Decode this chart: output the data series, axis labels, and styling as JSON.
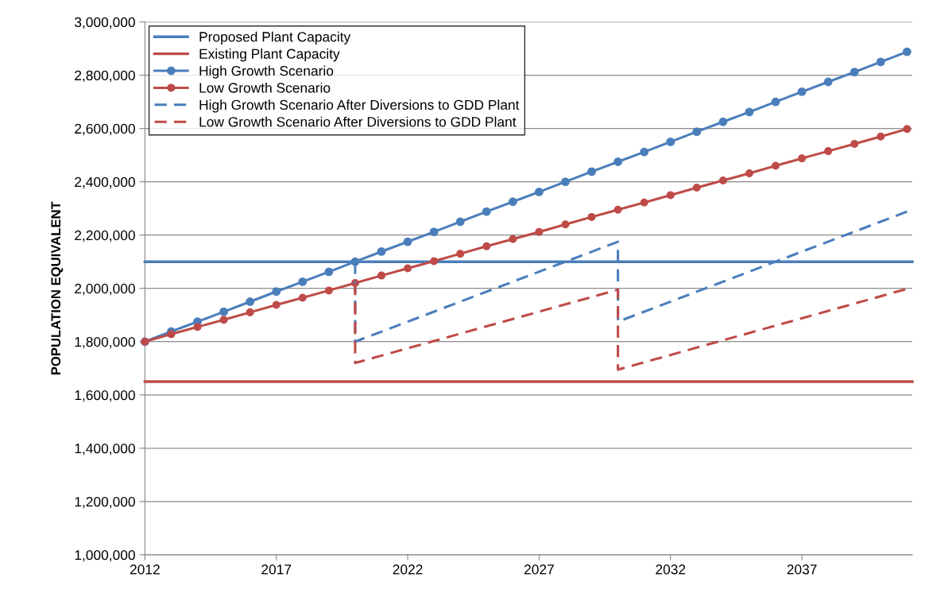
{
  "chart_data": {
    "type": "line",
    "ylabel": "POPULATION EQUIVALENT",
    "xlim": [
      2012,
      2041.2
    ],
    "xticks": [
      2012,
      2017,
      2022,
      2027,
      2032,
      2037
    ],
    "ylim": [
      1000000,
      3000000
    ],
    "yticks": [
      {
        "value": 1000000,
        "label": "1,000,000"
      },
      {
        "value": 1200000,
        "label": "1,200,000"
      },
      {
        "value": 1400000,
        "label": "1,400,000"
      },
      {
        "value": 1600000,
        "label": "1,600,000"
      },
      {
        "value": 1800000,
        "label": "1,800,000"
      },
      {
        "value": 2000000,
        "label": "2,000,000"
      },
      {
        "value": 2200000,
        "label": "2,200,000"
      },
      {
        "value": 2400000,
        "label": "2,400,000"
      },
      {
        "value": 2600000,
        "label": "2,600,000"
      },
      {
        "value": 2800000,
        "label": "2,800,000"
      },
      {
        "value": 3000000,
        "label": "3,000,000"
      }
    ],
    "grid": "y",
    "legend": "top left",
    "marker": "none",
    "line_style": "solid",
    "series": [
      {
        "name": "Proposed Plant Capacity",
        "color": "#4a7ebb",
        "x": [
          2012,
          2041.2
        ],
        "values": [
          2100000,
          2100000
        ]
      },
      {
        "name": "Existing Plant Capacity",
        "color": "#be4b48",
        "x": [
          2012,
          2041.2
        ],
        "values": [
          1650000,
          1650000
        ]
      },
      {
        "name": "High Growth Scenario",
        "color": "#4a7ebb",
        "marker": "circle",
        "x": [
          2012,
          2013,
          2014,
          2015,
          2016,
          2017,
          2018,
          2019,
          2020,
          2021,
          2022,
          2023,
          2024,
          2025,
          2026,
          2027,
          2028,
          2029,
          2030,
          2031,
          2032,
          2033,
          2034,
          2035,
          2036,
          2037,
          2038,
          2039,
          2040,
          2041
        ],
        "values": [
          1800000,
          1838000,
          1875000,
          1912000,
          1950000,
          1988000,
          2025000,
          2062000,
          2100000,
          2138000,
          2175000,
          2212000,
          2250000,
          2288000,
          2325000,
          2362000,
          2400000,
          2438000,
          2475000,
          2512000,
          2550000,
          2588000,
          2625000,
          2662000,
          2700000,
          2738000,
          2775000,
          2812000,
          2850000,
          2888000
        ]
      },
      {
        "name": "Low Growth Scenario",
        "color": "#be4b48",
        "marker": "circle",
        "x": [
          2012,
          2013,
          2014,
          2015,
          2016,
          2017,
          2018,
          2019,
          2020,
          2021,
          2022,
          2023,
          2024,
          2025,
          2026,
          2027,
          2028,
          2029,
          2030,
          2031,
          2032,
          2033,
          2034,
          2035,
          2036,
          2037,
          2038,
          2039,
          2040,
          2041
        ],
        "values": [
          1800000,
          1828000,
          1855000,
          1882000,
          1910000,
          1938000,
          1965000,
          1992000,
          2020000,
          2048000,
          2075000,
          2102000,
          2130000,
          2158000,
          2185000,
          2212000,
          2240000,
          2268000,
          2295000,
          2322000,
          2350000,
          2378000,
          2405000,
          2432000,
          2460000,
          2488000,
          2515000,
          2542000,
          2570000,
          2598000
        ]
      },
      {
        "name": "High Growth Scenario After Diversions to GDD Plant",
        "color": "#4a7ebb",
        "line_style": "dashed",
        "x": [
          2020,
          2020,
          2030,
          2030,
          2041
        ],
        "values": [
          2100000,
          1800000,
          2175000,
          1875000,
          2288000
        ]
      },
      {
        "name": "Low Growth Scenario After Diversions to GDD Plant",
        "color": "#be4b48",
        "line_style": "dashed",
        "x": [
          2020,
          2020,
          2030,
          2030,
          2041
        ],
        "values": [
          2020000,
          1720000,
          1995000,
          1695000,
          1998000
        ]
      }
    ]
  }
}
